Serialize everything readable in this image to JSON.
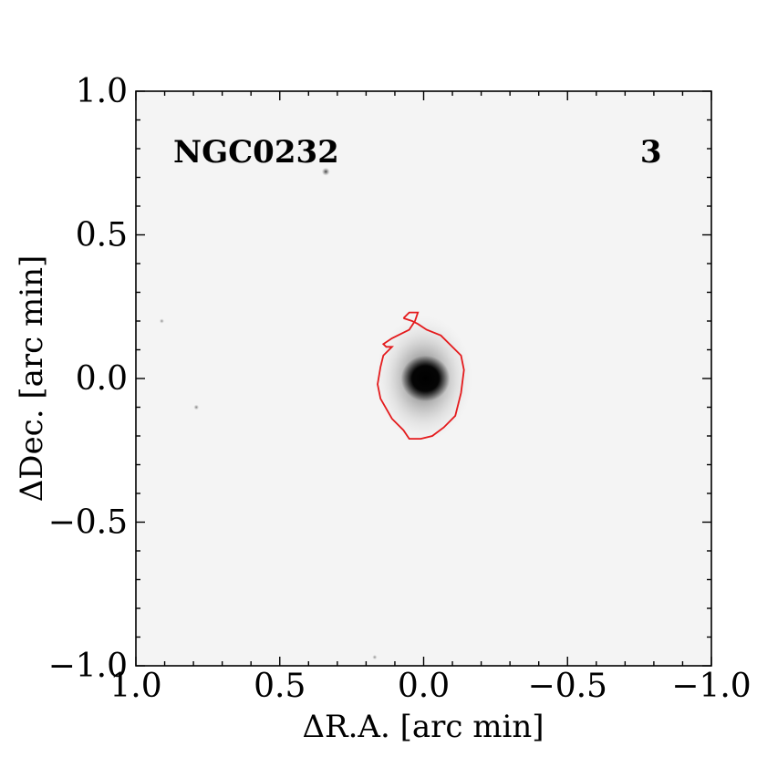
{
  "chart_data": {
    "type": "image",
    "xlabel": "ΔR.A. [arc min]",
    "ylabel": "ΔDec. [arc min]",
    "xlim": [
      1.0,
      -1.0
    ],
    "ylim": [
      -1.0,
      1.0
    ],
    "x_ticks": [
      1.0,
      0.5,
      0.0,
      -0.5,
      -1.0
    ],
    "x_tick_labels": [
      "1.0",
      "0.5",
      "0.0",
      "−0.5",
      "−1.0"
    ],
    "y_ticks": [
      1.0,
      0.5,
      0.0,
      -0.5,
      -1.0
    ],
    "y_tick_labels": [
      "1.0",
      "0.5",
      "0.0",
      "−0.5",
      "−1.0"
    ],
    "annotations": [
      {
        "text": "NGC0232",
        "x": 0.87,
        "y": 0.79
      },
      {
        "text": "3",
        "x": -0.79,
        "y": 0.79
      }
    ],
    "contour_color": "#e41a1c",
    "contour": [
      [
        0.07,
        0.21
      ],
      [
        0.05,
        0.23
      ],
      [
        0.02,
        0.23
      ],
      [
        0.03,
        0.2
      ],
      [
        0.05,
        0.17
      ],
      [
        0.11,
        0.14
      ],
      [
        0.14,
        0.12
      ],
      [
        0.13,
        0.11
      ],
      [
        0.11,
        0.11
      ],
      [
        0.14,
        0.08
      ],
      [
        0.15,
        0.04
      ],
      [
        0.16,
        -0.02
      ],
      [
        0.15,
        -0.07
      ],
      [
        0.11,
        -0.14
      ],
      [
        0.07,
        -0.18
      ],
      [
        0.05,
        -0.21
      ],
      [
        0.01,
        -0.21
      ],
      [
        -0.03,
        -0.2
      ],
      [
        -0.07,
        -0.17
      ],
      [
        -0.11,
        -0.13
      ],
      [
        -0.13,
        -0.05
      ],
      [
        -0.14,
        0.03
      ],
      [
        -0.13,
        0.08
      ],
      [
        -0.09,
        0.12
      ],
      [
        -0.06,
        0.15
      ],
      [
        -0.01,
        0.17
      ],
      [
        0.02,
        0.19
      ],
      [
        0.04,
        0.2
      ],
      [
        0.07,
        0.21
      ]
    ],
    "point_sources": [
      {
        "x": 0.34,
        "y": 0.72,
        "strength": 0.8
      },
      {
        "x": 0.79,
        "y": -0.1,
        "strength": 0.3
      },
      {
        "x": 0.91,
        "y": 0.2,
        "strength": 0.2
      },
      {
        "x": 0.17,
        "y": -0.97,
        "strength": 0.2
      }
    ]
  }
}
